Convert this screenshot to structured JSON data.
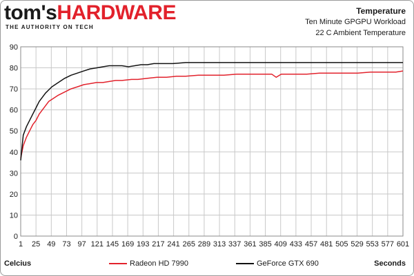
{
  "brand": {
    "name_part1": "tom's",
    "name_part2": "HARDWARE",
    "tagline": "THE AUTHORITY ON TECH"
  },
  "header": {
    "title": "Temperature",
    "subtitle1": "Ten Minute GPGPU Workload",
    "subtitle2": "22 C Ambient Temperature"
  },
  "footer": {
    "ylabel": "Celcius",
    "xlabel": "Seconds"
  },
  "colors": {
    "radeon": "#e2212b",
    "geforce": "#111111",
    "grid": "#c8c8c8"
  },
  "chart_data": {
    "type": "line",
    "xlabel": "Seconds",
    "ylabel": "Celcius",
    "title": "Temperature",
    "xlim": [
      1,
      601
    ],
    "ylim": [
      0,
      90
    ],
    "xticks": [
      1,
      25,
      49,
      73,
      97,
      121,
      145,
      169,
      193,
      217,
      241,
      265,
      289,
      313,
      337,
      361,
      385,
      409,
      433,
      457,
      481,
      505,
      529,
      553,
      577,
      601
    ],
    "yticks": [
      0,
      10,
      20,
      30,
      40,
      50,
      60,
      70,
      80,
      90
    ],
    "grid": true,
    "legend_position": "bottom",
    "series": [
      {
        "name": "Radeon HD 7990",
        "color": "#e2212b",
        "x": [
          1,
          5,
          10,
          15,
          20,
          25,
          30,
          35,
          40,
          45,
          50,
          60,
          70,
          80,
          90,
          100,
          110,
          120,
          130,
          140,
          150,
          160,
          175,
          185,
          200,
          215,
          230,
          245,
          260,
          280,
          300,
          320,
          340,
          360,
          380,
          395,
          402,
          410,
          430,
          450,
          470,
          490,
          510,
          530,
          550,
          570,
          590,
          601
        ],
        "values": [
          37,
          43,
          47,
          50,
          53,
          55,
          58,
          60,
          62,
          64,
          65,
          67,
          68.5,
          70,
          71,
          72,
          72.5,
          73,
          73,
          73.5,
          74,
          74,
          74.5,
          74.5,
          75,
          75.5,
          75.5,
          76,
          76,
          76.5,
          76.5,
          76.5,
          77,
          77,
          77,
          77,
          75.5,
          77,
          77,
          77,
          77.5,
          77.5,
          77.5,
          77.5,
          78,
          78,
          78,
          78.5
        ]
      },
      {
        "name": "GeForce GTX 690",
        "color": "#111111",
        "x": [
          1,
          5,
          10,
          15,
          20,
          25,
          30,
          35,
          40,
          45,
          50,
          60,
          70,
          80,
          90,
          100,
          110,
          120,
          130,
          140,
          150,
          160,
          170,
          180,
          190,
          200,
          210,
          225,
          240,
          260,
          280,
          300,
          320,
          340,
          360,
          380,
          400,
          420,
          440,
          460,
          480,
          500,
          520,
          540,
          560,
          580,
          601
        ],
        "values": [
          36,
          48,
          52,
          55,
          58,
          61,
          64,
          66,
          68,
          69.5,
          71,
          73,
          75,
          76.5,
          77.5,
          78.5,
          79.5,
          80,
          80.5,
          81,
          81,
          81,
          80.5,
          81,
          81.5,
          81.5,
          82,
          82,
          82,
          82.5,
          82.5,
          82.5,
          82.5,
          82.5,
          82.5,
          82.5,
          82.5,
          82.5,
          82.5,
          82.5,
          82.5,
          82.5,
          82.5,
          82.5,
          82.5,
          82.5,
          82.5
        ]
      }
    ]
  }
}
